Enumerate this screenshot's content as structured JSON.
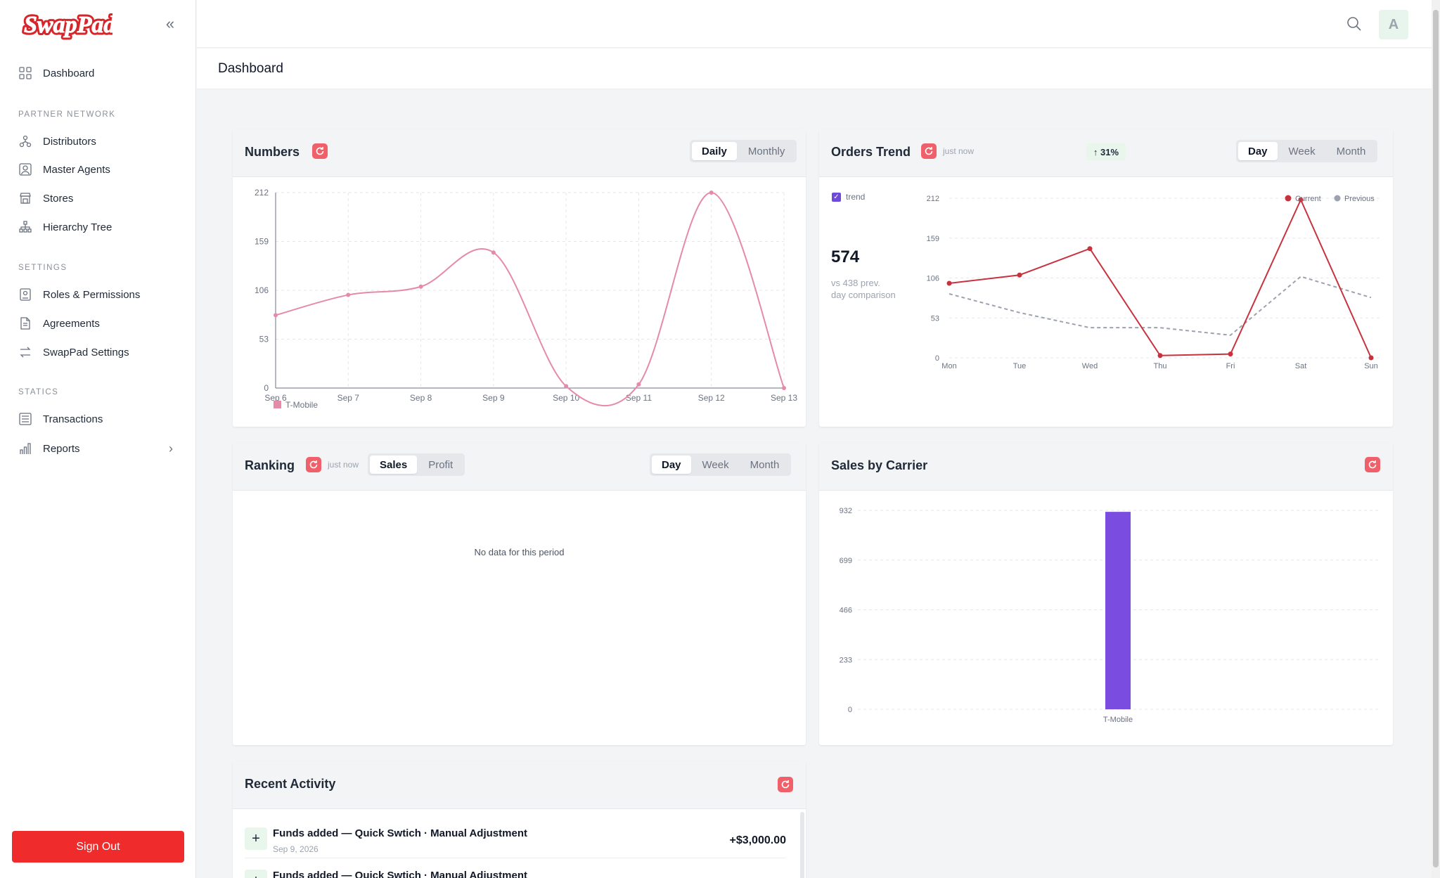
{
  "brand": {
    "name": "SwapPad",
    "color": "#d7252a"
  },
  "sidebar": {
    "items": [
      {
        "label": "Dashboard",
        "icon": "grid-icon"
      },
      {
        "section": "PARTNER NETWORK"
      },
      {
        "label": "Distributors",
        "icon": "network-icon"
      },
      {
        "label": "Master Agents",
        "icon": "user-card-icon"
      },
      {
        "label": "Stores",
        "icon": "store-icon"
      },
      {
        "label": "Hierarchy Tree",
        "icon": "hierarchy-icon"
      },
      {
        "section": "SETTINGS"
      },
      {
        "label": "Roles & Permissions",
        "icon": "id-badge-icon"
      },
      {
        "label": "Agreements",
        "icon": "document-icon"
      },
      {
        "label": "SwapPad Settings",
        "icon": "swap-icon"
      },
      {
        "section": "STATICS"
      },
      {
        "label": "Transactions",
        "icon": "list-icon"
      },
      {
        "label": "Reports",
        "icon": "bar-chart-icon"
      }
    ],
    "sign_out": "Sign Out"
  },
  "topbar": {
    "avatar_letter": "A"
  },
  "page": {
    "title": "Dashboard"
  },
  "numbers_card": {
    "title": "Numbers",
    "tabs": [
      "Daily",
      "Monthly"
    ],
    "active_tab": "Daily"
  },
  "orders_card": {
    "title": "Orders Trend",
    "updated": "just now",
    "change": "↑ 31%",
    "tabs": [
      "Day",
      "Week",
      "Month"
    ],
    "active_tab": "Day",
    "trend_label": "trend",
    "total": "574",
    "comparison": "vs 438 prev. day comparison",
    "comparison_line1": "vs 438 prev.",
    "comparison_line2": "day comparison"
  },
  "ranking_card": {
    "title": "Ranking",
    "updated": "just now",
    "metric_tabs": [
      "Sales",
      "Profit"
    ],
    "active_metric": "Sales",
    "tabs": [
      "Day",
      "Week",
      "Month"
    ],
    "active_tab": "Day",
    "empty_text": "No data for this period"
  },
  "carrier_card": {
    "title": "Sales by Carrier"
  },
  "activity_card": {
    "title": "Recent Activity",
    "items": [
      {
        "title": "Funds added — Quick Swtich · Manual Adjustment",
        "date": "Sep 9, 2026",
        "amount": "+$3,000.00"
      },
      {
        "title": "Funds added — Quick Swtich · Manual Adjustment",
        "date": "",
        "amount": ""
      }
    ]
  },
  "chart_data": [
    {
      "type": "line",
      "title": "Numbers",
      "categories": [
        "Sep 6",
        "Sep 7",
        "Sep 8",
        "Sep 9",
        "Sep 10",
        "Sep 11",
        "Sep 12",
        "Sep 13"
      ],
      "yticks": [
        0,
        53,
        106,
        159,
        212
      ],
      "ylim": [
        0,
        212
      ],
      "series": [
        {
          "name": "T-Mobile",
          "color": "#e58aa8",
          "values": [
            79,
            101,
            110,
            147,
            2,
            4,
            212,
            0
          ]
        }
      ],
      "grid": true,
      "legend": "bottom-left"
    },
    {
      "type": "line",
      "title": "Orders Trend",
      "categories": [
        "Mon",
        "Tue",
        "Wed",
        "Thu",
        "Fri",
        "Sat",
        "Sun"
      ],
      "yticks": [
        0,
        53,
        106,
        159,
        212
      ],
      "ylim": [
        0,
        212
      ],
      "series": [
        {
          "name": "Current",
          "color": "#c8323e",
          "values": [
            99,
            110,
            145,
            3,
            5,
            210,
            0
          ]
        },
        {
          "name": "Previous",
          "color": "#9ca3af",
          "values": [
            85,
            60,
            40,
            40,
            30,
            108,
            80
          ]
        }
      ],
      "grid": true,
      "legend": "top-right"
    },
    {
      "type": "bar",
      "title": "Sales by Carrier",
      "categories": [
        "T-Mobile"
      ],
      "values": [
        925
      ],
      "yticks": [
        0,
        233,
        466,
        699,
        932
      ],
      "ylim": [
        0,
        932
      ],
      "color": "#7b4ce0",
      "grid": true
    }
  ]
}
